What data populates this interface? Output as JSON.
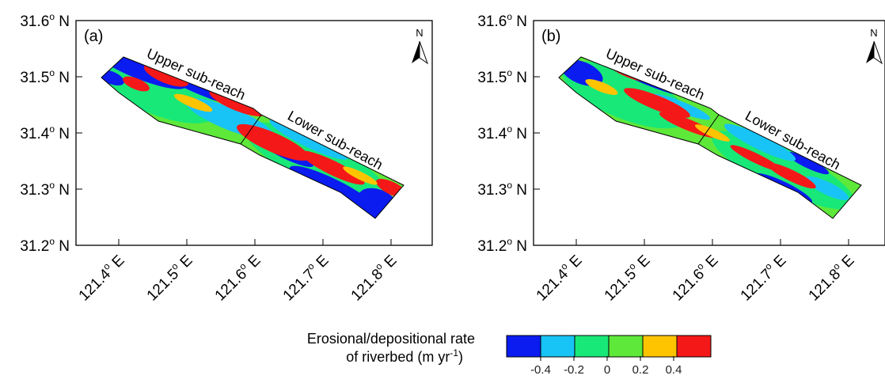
{
  "panels": [
    {
      "tag": "(a)",
      "y_ticks": [
        {
          "num": "31.6",
          "deg": "o",
          "dir": " N",
          "value": 31.6
        },
        {
          "num": "31.5",
          "deg": "o",
          "dir": " N",
          "value": 31.5
        },
        {
          "num": "31.4",
          "deg": "o",
          "dir": " N",
          "value": 31.4
        },
        {
          "num": "31.3",
          "deg": "o",
          "dir": " N",
          "value": 31.3
        },
        {
          "num": "31.2",
          "deg": "o",
          "dir": " N",
          "value": 31.2
        }
      ],
      "x_ticks": [
        {
          "num": "121.4",
          "deg": "o",
          "dir": " E",
          "value": 121.4
        },
        {
          "num": "121.5",
          "deg": "o",
          "dir": " E",
          "value": 121.5
        },
        {
          "num": "121.6",
          "deg": "o",
          "dir": " E",
          "value": 121.6
        },
        {
          "num": "121.7",
          "deg": "o",
          "dir": " E",
          "value": 121.7
        },
        {
          "num": "121.8",
          "deg": "o",
          "dir": " E",
          "value": 121.8
        }
      ],
      "upper_label": "Upper sub-reach",
      "lower_label": "Lower sub-reach",
      "north_label": "N"
    },
    {
      "tag": "(b)",
      "y_ticks": [
        {
          "num": "31.6",
          "deg": "o",
          "dir": " N",
          "value": 31.6
        },
        {
          "num": "31.5",
          "deg": "o",
          "dir": " N",
          "value": 31.5
        },
        {
          "num": "31.4",
          "deg": "o",
          "dir": " N",
          "value": 31.4
        },
        {
          "num": "31.3",
          "deg": "o",
          "dir": " N",
          "value": 31.3
        },
        {
          "num": "31.2",
          "deg": "o",
          "dir": " N",
          "value": 31.2
        }
      ],
      "x_ticks": [
        {
          "num": "121.4",
          "deg": "o",
          "dir": " E",
          "value": 121.4
        },
        {
          "num": "121.5",
          "deg": "o",
          "dir": " E",
          "value": 121.5
        },
        {
          "num": "121.6",
          "deg": "o",
          "dir": " E",
          "value": 121.6
        },
        {
          "num": "121.7",
          "deg": "o",
          "dir": " E",
          "value": 121.7
        },
        {
          "num": "121.8",
          "deg": "o",
          "dir": " E",
          "value": 121.8
        }
      ],
      "upper_label": "Upper sub-reach",
      "lower_label": "Lower sub-reach",
      "north_label": "N"
    }
  ],
  "legend": {
    "title_line1": "Erosional/depositional rate",
    "title_line2_prefix": "of riverbed (m yr",
    "title_line2_sup": "-1",
    "title_line2_suffix": ")",
    "tick_labels": [
      "-0.4",
      "-0.2",
      "0",
      "0.2",
      "0.4"
    ],
    "colors": [
      "#0a1cf0",
      "#18c4f5",
      "#18e878",
      "#5ee83a",
      "#ffc400",
      "#f51818"
    ]
  }
}
